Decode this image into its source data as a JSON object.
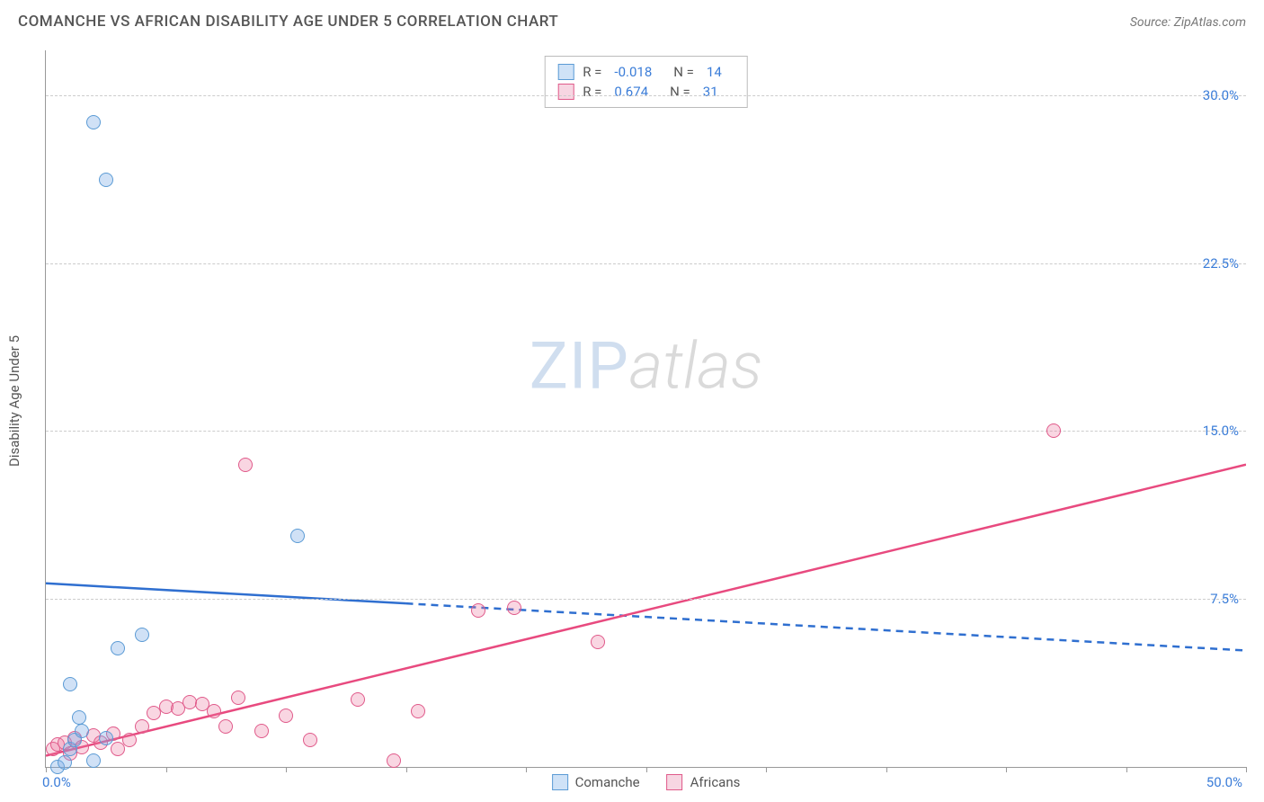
{
  "header": {
    "title": "COMANCHE VS AFRICAN DISABILITY AGE UNDER 5 CORRELATION CHART",
    "source_label": "Source: ",
    "source_name": "ZipAtlas.com"
  },
  "chart": {
    "type": "scatter",
    "y_axis_title": "Disability Age Under 5",
    "xlim": [
      0,
      50
    ],
    "ylim": [
      0,
      32
    ],
    "x_min_label": "0.0%",
    "x_max_label": "50.0%",
    "y_ticks": [
      7.5,
      15.0,
      22.5,
      30.0
    ],
    "y_tick_labels": [
      "7.5%",
      "15.0%",
      "22.5%",
      "30.0%"
    ],
    "x_tick_step": 5,
    "background_color": "#ffffff",
    "grid_color": "#cccccc",
    "axis_color": "#999999",
    "tick_label_color": "#3b7dd8",
    "series": {
      "comanche": {
        "label": "Comanche",
        "marker_fill": "rgba(120,170,230,0.35)",
        "marker_stroke": "#5b9bd5",
        "marker_radius": 8,
        "swatch_fill": "#cfe2f7",
        "swatch_stroke": "#5b9bd5",
        "trend_color": "#2f6fd0",
        "trend_width": 2.5,
        "trend_solid_to_x": 15,
        "trend_y_at_x0": 8.2,
        "trend_y_at_xmax": 5.2,
        "R": "-0.018",
        "N": "14",
        "points": [
          [
            0.5,
            0.0
          ],
          [
            0.8,
            0.2
          ],
          [
            1.0,
            0.8
          ],
          [
            1.2,
            1.2
          ],
          [
            1.5,
            1.6
          ],
          [
            1.0,
            3.7
          ],
          [
            1.4,
            2.2
          ],
          [
            2.0,
            0.3
          ],
          [
            2.5,
            1.3
          ],
          [
            3.0,
            5.3
          ],
          [
            4.0,
            5.9
          ],
          [
            10.5,
            10.3
          ],
          [
            2.0,
            28.8
          ],
          [
            2.5,
            26.2
          ]
        ]
      },
      "africans": {
        "label": "Africans",
        "marker_fill": "rgba(235,120,160,0.30)",
        "marker_stroke": "#e05a8a",
        "marker_radius": 8,
        "swatch_fill": "#f7d6e2",
        "swatch_stroke": "#e05a8a",
        "trend_color": "#e84a7f",
        "trend_width": 2.5,
        "trend_solid_to_x": 50,
        "trend_y_at_x0": 0.5,
        "trend_y_at_xmax": 13.5,
        "R": "0.674",
        "N": "31",
        "points": [
          [
            0.3,
            0.8
          ],
          [
            0.5,
            1.0
          ],
          [
            0.8,
            1.1
          ],
          [
            1.0,
            0.6
          ],
          [
            1.2,
            1.3
          ],
          [
            1.5,
            0.9
          ],
          [
            2.0,
            1.4
          ],
          [
            2.3,
            1.1
          ],
          [
            2.8,
            1.5
          ],
          [
            3.0,
            0.8
          ],
          [
            3.5,
            1.2
          ],
          [
            4.0,
            1.8
          ],
          [
            4.5,
            2.4
          ],
          [
            5.0,
            2.7
          ],
          [
            5.5,
            2.6
          ],
          [
            6.0,
            2.9
          ],
          [
            6.5,
            2.8
          ],
          [
            7.0,
            2.5
          ],
          [
            7.5,
            1.8
          ],
          [
            8.0,
            3.1
          ],
          [
            8.3,
            13.5
          ],
          [
            9.0,
            1.6
          ],
          [
            10.0,
            2.3
          ],
          [
            11.0,
            1.2
          ],
          [
            13.0,
            3.0
          ],
          [
            14.5,
            0.3
          ],
          [
            15.5,
            2.5
          ],
          [
            18.0,
            7.0
          ],
          [
            19.5,
            7.1
          ],
          [
            23.0,
            5.6
          ],
          [
            42.0,
            15.0
          ]
        ]
      }
    },
    "legend_bottom_items": [
      "comanche",
      "africans"
    ]
  },
  "watermark": {
    "part1": "ZIP",
    "part2": "atlas"
  }
}
